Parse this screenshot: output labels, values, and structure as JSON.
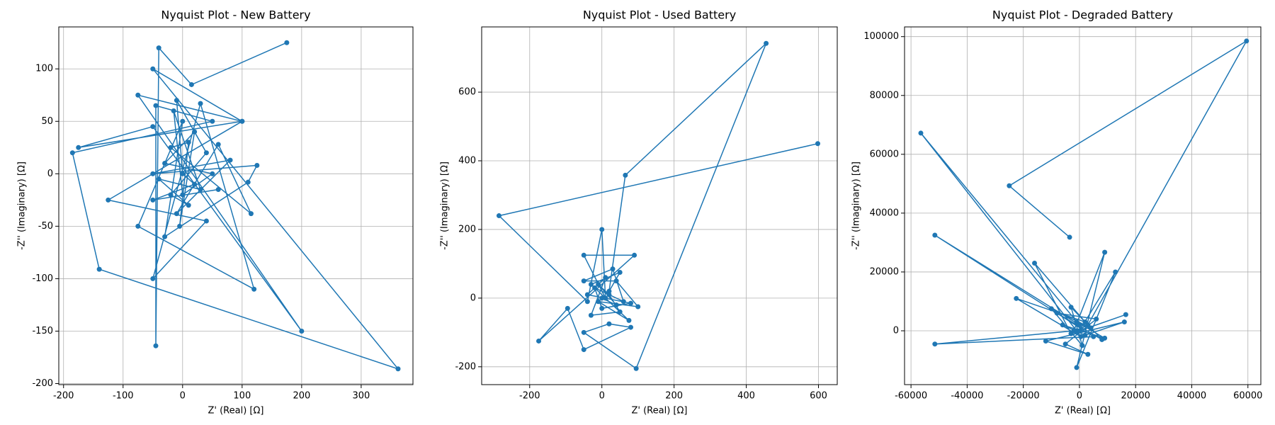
{
  "chart_data": [
    {
      "type": "line",
      "markers": true,
      "title": "Nyquist Plot - New Battery",
      "x_label": "Z' (Real) [Ω]",
      "y_label": "-Z'' (Imaginary) [Ω]",
      "color": "#1f77b4",
      "grid": true,
      "xlim": [
        -208,
        387
      ],
      "ylim": [
        -201,
        140
      ],
      "xticks": [
        -200,
        -100,
        0,
        100,
        200,
        300
      ],
      "yticks": [
        -200,
        -150,
        -100,
        -50,
        0,
        50,
        100
      ],
      "x": [
        175,
        15,
        -40,
        -45,
        -45,
        50,
        -185,
        -140,
        362,
        -50,
        100,
        -75,
        200,
        -50,
        -175,
        100,
        -125,
        40,
        -50,
        30,
        120,
        -75,
        0,
        -30,
        110,
        125,
        -50,
        80,
        -10,
        60,
        115,
        -20,
        10,
        -5,
        20,
        -30,
        50,
        0,
        -15,
        30,
        -40,
        10,
        -20,
        40,
        -10,
        0,
        20,
        -50,
        60
      ],
      "values": [
        125,
        85,
        120,
        -164,
        65,
        50,
        20,
        -91,
        -186,
        100,
        50,
        75,
        -150,
        45,
        25,
        50,
        -25,
        -45,
        -100,
        67,
        -110,
        -50,
        50,
        -60,
        -8,
        8,
        0,
        13,
        -38,
        28,
        -38,
        25,
        30,
        -50,
        40,
        10,
        0,
        -20,
        60,
        -15,
        -5,
        -30,
        -20,
        20,
        70,
        0,
        -10,
        -25,
        -15
      ]
    },
    {
      "type": "line",
      "markers": true,
      "title": "Nyquist Plot - Used Battery",
      "x_label": "Z' (Real) [Ω]",
      "y_label": "-Z'' (Imaginary) [Ω]",
      "color": "#1f77b4",
      "grid": true,
      "xlim": [
        -333,
        652
      ],
      "ylim": [
        -252,
        790
      ],
      "xticks": [
        -200,
        0,
        200,
        400,
        600
      ],
      "yticks": [
        -200,
        0,
        200,
        400,
        600
      ],
      "x": [
        598,
        -285,
        -40,
        0,
        10,
        -50,
        90,
        -175,
        -95,
        -50,
        80,
        20,
        -50,
        95,
        455,
        65,
        20,
        50,
        -30,
        75,
        -10,
        100,
        40,
        -50,
        30,
        60,
        -20,
        0,
        80,
        -40,
        10,
        -30,
        50,
        20,
        -10,
        40,
        0
      ],
      "values": [
        450,
        240,
        -10,
        200,
        0,
        125,
        125,
        -125,
        -30,
        -150,
        -85,
        -75,
        -100,
        -205,
        742,
        358,
        20,
        75,
        40,
        -65,
        -10,
        -25,
        50,
        50,
        85,
        -10,
        30,
        -30,
        -15,
        10,
        60,
        -50,
        -40,
        10,
        40,
        -20,
        0
      ]
    },
    {
      "type": "line",
      "markers": true,
      "title": "Nyquist Plot - Degraded Battery",
      "x_label": "Z' (Real) [Ω]",
      "y_label": "-Z'' (Imaginary) [Ω]",
      "color": "#1f77b4",
      "grid": true,
      "xlim": [
        -62300,
        64600
      ],
      "ylim": [
        -18300,
        103300
      ],
      "xticks": [
        -60000,
        -40000,
        -20000,
        0,
        20000,
        40000,
        60000
      ],
      "yticks": [
        0,
        20000,
        40000,
        60000,
        80000,
        100000
      ],
      "x": [
        -3500,
        -25000,
        59500,
        3000,
        -1000,
        -56500,
        0,
        -51500,
        5000,
        -51500,
        -2000,
        9000,
        -1000,
        12800,
        0,
        16500,
        -3000,
        -16000,
        2000,
        -22500,
        500,
        16000,
        -12000,
        3000,
        -5000,
        6000,
        -8000,
        8000,
        -3000,
        1000,
        -10000,
        4000,
        -1000,
        9000,
        -6000,
        2000
      ],
      "values": [
        31800,
        49300,
        98500,
        2000,
        0,
        67200,
        2000,
        32500,
        -2000,
        -4500,
        0,
        26700,
        -12500,
        20000,
        0,
        5500,
        -1000,
        23000,
        3000,
        11000,
        -2000,
        3000,
        -3500,
        -8000,
        -4500,
        4000,
        6000,
        -3000,
        8000,
        -5000,
        7500,
        1000,
        3000,
        -2500,
        2000,
        -1500
      ]
    }
  ]
}
